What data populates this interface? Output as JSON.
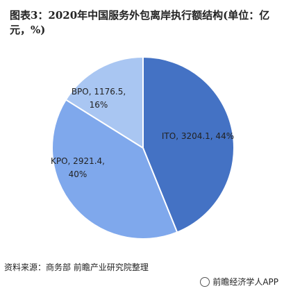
{
  "title": "图表3：2020年中国服务外包离岸执行额结构(单位：亿元，%)",
  "source": "资料来源：商务部 前瞻产业研究院整理",
  "brand": "前瞻经济学人APP",
  "colors": {
    "ITO": "#4472C4",
    "KPO": "#7FA8EC",
    "BPO": "#A9C6F2",
    "stroke": "#ffffff"
  },
  "chart_data": {
    "type": "pie",
    "title": "图表3：2020年中国服务外包离岸执行额结构(单位：亿元，%)",
    "slices": [
      {
        "label": "ITO",
        "value": 3204.1,
        "percent": 44,
        "text_line1": "ITO, 3204.1, 44%",
        "text_line2": ""
      },
      {
        "label": "KPO",
        "value": 2921.4,
        "percent": 40,
        "text_line1": "KPO, 2921.4,",
        "text_line2": "40%"
      },
      {
        "label": "BPO",
        "value": 1176.5,
        "percent": 16,
        "text_line1": "BPO, 1176.5,",
        "text_line2": "16%"
      }
    ]
  }
}
